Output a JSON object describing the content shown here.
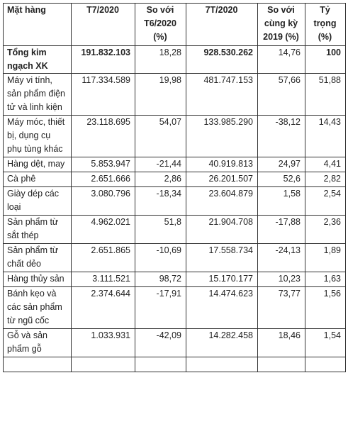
{
  "table": {
    "header": [
      "Mặt hàng",
      "T7/2020",
      "So với T6/2020 (%)",
      "7T/2020",
      "So với cùng kỳ 2019 (%)",
      "Tỷ trọng (%)"
    ],
    "rows": [
      [
        "Tổng kim ngạch XK",
        "191.832.103",
        "18,28",
        "928.530.262",
        "14,76",
        "100"
      ],
      [
        "Máy vi tính, sản phẩm điện tử và linh kiện",
        "117.334.589",
        "19,98",
        "481.747.153",
        "57,66",
        "51,88"
      ],
      [
        "Máy móc, thiết bị, dụng cụ phụ tùng khác",
        "23.118.695",
        "54,07",
        "133.985.290",
        "-38,12",
        "14,43"
      ],
      [
        "Hàng dệt, may",
        "5.853.947",
        "-21,44",
        "40.919.813",
        "24,97",
        "4,41"
      ],
      [
        "Cà phê",
        "2.651.666",
        "2,86",
        "26.201.507",
        "52,6",
        "2,82"
      ],
      [
        "Giày dép các loại",
        "3.080.796",
        "-18,34",
        "23.604.879",
        "1,58",
        "2,54"
      ],
      [
        "Sản phẩm từ sắt thép",
        "4.962.021",
        "51,8",
        "21.904.708",
        "-17,88",
        "2,36"
      ],
      [
        "Sản phẩm từ chất dẻo",
        "2.651.865",
        "-10,69",
        "17.558.734",
        "-24,13",
        "1,89"
      ],
      [
        "Hàng thủy sản",
        "3.111.521",
        "98,72",
        "15.170.177",
        "10,23",
        "1,63"
      ],
      [
        "Bánh kẹo và các sản phẩm từ ngũ cốc",
        "2.374.644",
        "-17,91",
        "14.474.623",
        "73,77",
        "1,56"
      ],
      [
        "Gỗ và sản phẩm gỗ",
        "1.033.931",
        "-42,09",
        "14.282.458",
        "18,46",
        "1,54"
      ]
    ]
  }
}
